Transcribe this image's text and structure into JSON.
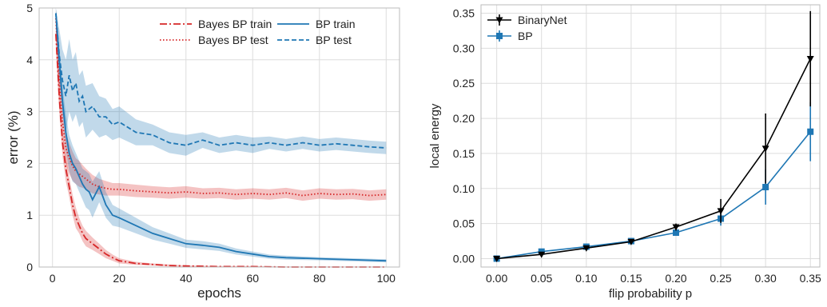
{
  "chart_data": [
    {
      "type": "line",
      "xlabel": "epochs",
      "ylabel": "error (%)",
      "xlim": [
        -4,
        104
      ],
      "ylim": [
        0,
        5
      ],
      "xticks": [
        0,
        20,
        40,
        60,
        80,
        100
      ],
      "yticks": [
        0,
        1,
        2,
        3,
        4,
        5
      ],
      "grid": true,
      "legend_position": "top-right",
      "series": [
        {
          "name": "Bayes BP  train",
          "color": "#d62728",
          "style": "dashdot",
          "x": [
            1,
            2,
            3,
            4,
            5,
            6,
            7,
            8,
            9,
            10,
            12,
            14,
            16,
            18,
            20,
            22,
            25,
            30,
            35,
            40,
            50,
            60,
            70,
            80,
            90,
            100
          ],
          "values": [
            4.5,
            3.3,
            2.4,
            1.9,
            1.55,
            1.2,
            0.95,
            0.8,
            0.65,
            0.55,
            0.45,
            0.35,
            0.25,
            0.18,
            0.12,
            0.1,
            0.07,
            0.05,
            0.03,
            0.02,
            0.01,
            0.01,
            0.0,
            0.0,
            0.0,
            0.0
          ],
          "band": [
            0.3,
            0.3,
            0.25,
            0.25,
            0.2,
            0.2,
            0.2,
            0.15,
            0.15,
            0.15,
            0.12,
            0.1,
            0.08,
            0.06,
            0.05,
            0.04,
            0.03,
            0.02,
            0.02,
            0.01,
            0.01,
            0.01,
            0.01,
            0.01,
            0.01,
            0.01
          ]
        },
        {
          "name": "Bayes BP  test",
          "color": "#d62728",
          "style": "dotted",
          "x": [
            1,
            2,
            3,
            4,
            5,
            6,
            7,
            8,
            9,
            10,
            12,
            14,
            16,
            18,
            20,
            25,
            30,
            35,
            40,
            45,
            50,
            55,
            60,
            65,
            70,
            75,
            80,
            85,
            90,
            95,
            100
          ],
          "values": [
            4.8,
            3.6,
            2.8,
            2.3,
            2.1,
            1.95,
            1.85,
            1.8,
            1.75,
            1.7,
            1.6,
            1.55,
            1.52,
            1.5,
            1.5,
            1.47,
            1.45,
            1.43,
            1.45,
            1.42,
            1.43,
            1.4,
            1.42,
            1.4,
            1.43,
            1.38,
            1.42,
            1.4,
            1.41,
            1.38,
            1.4
          ],
          "band": [
            0.3,
            0.3,
            0.3,
            0.3,
            0.3,
            0.28,
            0.25,
            0.25,
            0.22,
            0.2,
            0.18,
            0.15,
            0.14,
            0.12,
            0.12,
            0.12,
            0.11,
            0.11,
            0.11,
            0.1,
            0.1,
            0.1,
            0.1,
            0.1,
            0.1,
            0.1,
            0.1,
            0.1,
            0.1,
            0.1,
            0.1
          ]
        },
        {
          "name": "BP  train",
          "color": "#1f77b4",
          "style": "solid",
          "x": [
            1,
            2,
            3,
            4,
            5,
            6,
            7,
            8,
            9,
            10,
            11,
            12,
            14,
            16,
            18,
            20,
            25,
            30,
            35,
            40,
            45,
            50,
            55,
            60,
            65,
            70,
            80,
            90,
            100
          ],
          "values": [
            4.9,
            4.0,
            3.2,
            2.6,
            2.2,
            2.0,
            1.9,
            1.75,
            1.6,
            1.5,
            1.45,
            1.3,
            1.55,
            1.2,
            1.0,
            0.95,
            0.8,
            0.65,
            0.55,
            0.45,
            0.42,
            0.38,
            0.3,
            0.25,
            0.2,
            0.18,
            0.16,
            0.14,
            0.12
          ],
          "band": [
            0.3,
            0.3,
            0.3,
            0.35,
            0.35,
            0.35,
            0.3,
            0.3,
            0.3,
            0.35,
            0.35,
            0.35,
            0.3,
            0.25,
            0.2,
            0.18,
            0.15,
            0.12,
            0.1,
            0.08,
            0.08,
            0.07,
            0.06,
            0.05,
            0.04,
            0.04,
            0.03,
            0.03,
            0.03
          ]
        },
        {
          "name": "BP  test",
          "color": "#1f77b4",
          "style": "dashed",
          "x": [
            1,
            2,
            3,
            4,
            5,
            6,
            7,
            8,
            9,
            10,
            12,
            14,
            16,
            18,
            20,
            25,
            30,
            35,
            40,
            45,
            50,
            55,
            60,
            65,
            70,
            75,
            80,
            85,
            90,
            95,
            100
          ],
          "values": [
            4.9,
            4.1,
            3.6,
            3.3,
            3.7,
            3.4,
            3.55,
            3.2,
            3.3,
            3.0,
            3.1,
            2.9,
            2.9,
            2.75,
            2.8,
            2.6,
            2.55,
            2.4,
            2.35,
            2.45,
            2.35,
            2.4,
            2.35,
            2.4,
            2.35,
            2.4,
            2.35,
            2.38,
            2.35,
            2.32,
            2.3
          ],
          "band": [
            0.3,
            0.5,
            0.6,
            0.7,
            0.7,
            0.6,
            0.6,
            0.5,
            0.5,
            0.5,
            0.45,
            0.4,
            0.35,
            0.3,
            0.3,
            0.25,
            0.2,
            0.2,
            0.2,
            0.15,
            0.15,
            0.15,
            0.15,
            0.12,
            0.12,
            0.12,
            0.12,
            0.12,
            0.12,
            0.12,
            0.12
          ]
        }
      ]
    },
    {
      "type": "line",
      "xlabel": "flip probability p",
      "ylabel": "local energy",
      "xlim": [
        -0.0175,
        0.3605
      ],
      "ylim": [
        -0.012,
        0.362
      ],
      "xticks": [
        "0.00",
        "0.05",
        "0.10",
        "0.15",
        "0.20",
        "0.25",
        "0.30",
        "0.35"
      ],
      "yticks": [
        "0.00",
        "0.05",
        "0.10",
        "0.15",
        "0.20",
        "0.25",
        "0.30",
        "0.35"
      ],
      "grid": true,
      "legend_position": "top-left",
      "series": [
        {
          "name": "BinaryNet",
          "color": "#000000",
          "marker": "triangle-down",
          "x": [
            0.0,
            0.05,
            0.1,
            0.15,
            0.2,
            0.25,
            0.3,
            0.35
          ],
          "values": [
            0.0,
            0.006,
            0.015,
            0.024,
            0.045,
            0.068,
            0.157,
            0.285
          ],
          "err": [
            0.0,
            0.002,
            0.003,
            0.003,
            0.005,
            0.017,
            0.05,
            0.068
          ]
        },
        {
          "name": "BP",
          "color": "#1f77b4",
          "marker": "square",
          "x": [
            0.0,
            0.05,
            0.1,
            0.15,
            0.2,
            0.25,
            0.3,
            0.35
          ],
          "values": [
            0.0,
            0.01,
            0.017,
            0.025,
            0.037,
            0.057,
            0.102,
            0.181
          ],
          "err": [
            0.0,
            0.002,
            0.003,
            0.003,
            0.004,
            0.01,
            0.025,
            0.042
          ]
        }
      ]
    }
  ]
}
